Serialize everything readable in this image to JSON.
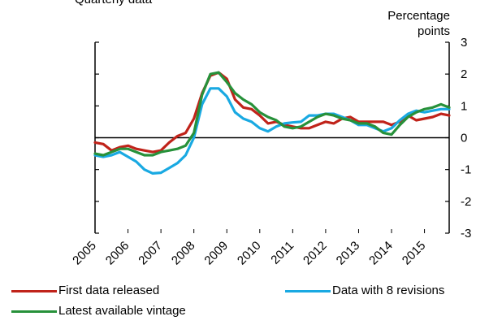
{
  "chart_data": {
    "type": "line",
    "subtitle": "Quarterly data",
    "ylabel": "Percentage points",
    "ylabel_lines": [
      "Percentage",
      "points"
    ],
    "ylim": [
      -3,
      3
    ],
    "yticks": [
      3,
      2,
      1,
      0,
      -1,
      -2,
      -3
    ],
    "xlim": [
      2005.0,
      2015.75
    ],
    "xticks": [
      "2005",
      "2006",
      "2007",
      "2008",
      "2009",
      "2010",
      "2011",
      "2012",
      "2013",
      "2014",
      "2015"
    ],
    "legend_position": "bottom",
    "grid": false,
    "series": [
      {
        "name": "First data released",
        "color": "#c0231a",
        "x": [
          2005.0,
          2005.25,
          2005.5,
          2005.75,
          2006.0,
          2006.25,
          2006.5,
          2006.75,
          2007.0,
          2007.25,
          2007.5,
          2007.75,
          2008.0,
          2008.25,
          2008.5,
          2008.75,
          2009.0,
          2009.25,
          2009.5,
          2009.75,
          2010.0,
          2010.25,
          2010.5,
          2010.75,
          2011.0,
          2011.25,
          2011.5,
          2011.75,
          2012.0,
          2012.25,
          2012.5,
          2012.75,
          2013.0,
          2013.25,
          2013.5,
          2013.75,
          2014.0,
          2014.25,
          2014.5,
          2014.75,
          2015.0,
          2015.25,
          2015.5,
          2015.75
        ],
        "y": [
          -0.15,
          -0.2,
          -0.4,
          -0.3,
          -0.25,
          -0.35,
          -0.4,
          -0.45,
          -0.4,
          -0.15,
          0.05,
          0.15,
          0.6,
          1.4,
          1.95,
          2.05,
          1.85,
          1.2,
          0.95,
          0.9,
          0.7,
          0.45,
          0.5,
          0.4,
          0.35,
          0.3,
          0.3,
          0.4,
          0.5,
          0.45,
          0.6,
          0.65,
          0.5,
          0.5,
          0.5,
          0.5,
          0.4,
          0.5,
          0.7,
          0.55,
          0.6,
          0.65,
          0.75,
          0.7
        ]
      },
      {
        "name": "Data with 8 revisions",
        "color": "#19a9e2",
        "x": [
          2005.0,
          2005.25,
          2005.5,
          2005.75,
          2006.0,
          2006.25,
          2006.5,
          2006.75,
          2007.0,
          2007.25,
          2007.5,
          2007.75,
          2008.0,
          2008.25,
          2008.5,
          2008.75,
          2009.0,
          2009.25,
          2009.5,
          2009.75,
          2010.0,
          2010.25,
          2010.5,
          2010.75,
          2011.0,
          2011.25,
          2011.5,
          2011.75,
          2012.0,
          2012.25,
          2012.5,
          2012.75,
          2013.0,
          2013.25,
          2013.5,
          2013.75,
          2014.0,
          2014.25,
          2014.5,
          2014.75,
          2015.0,
          2015.25,
          2015.5,
          2015.75
        ],
        "y": [
          -0.55,
          -0.6,
          -0.55,
          -0.45,
          -0.6,
          -0.75,
          -1.0,
          -1.12,
          -1.1,
          -0.95,
          -0.8,
          -0.55,
          0.0,
          1.05,
          1.55,
          1.55,
          1.3,
          0.8,
          0.6,
          0.5,
          0.3,
          0.2,
          0.35,
          0.45,
          0.48,
          0.5,
          0.7,
          0.7,
          0.75,
          0.75,
          0.65,
          0.55,
          0.4,
          0.4,
          0.3,
          0.2,
          0.3,
          0.55,
          0.75,
          0.85,
          0.8,
          0.85,
          0.9,
          0.9
        ]
      },
      {
        "name": "Latest available vintage",
        "color": "#27913a",
        "x": [
          2005.0,
          2005.25,
          2005.5,
          2005.75,
          2006.0,
          2006.25,
          2006.5,
          2006.75,
          2007.0,
          2007.25,
          2007.5,
          2007.75,
          2008.0,
          2008.25,
          2008.5,
          2008.75,
          2009.0,
          2009.25,
          2009.5,
          2009.75,
          2010.0,
          2010.25,
          2010.5,
          2010.75,
          2011.0,
          2011.25,
          2011.5,
          2011.75,
          2012.0,
          2012.25,
          2012.5,
          2012.75,
          2013.0,
          2013.25,
          2013.5,
          2013.75,
          2014.0,
          2014.25,
          2014.5,
          2014.75,
          2015.0,
          2015.25,
          2015.5,
          2015.75
        ],
        "y": [
          -0.5,
          -0.55,
          -0.45,
          -0.35,
          -0.35,
          -0.45,
          -0.55,
          -0.55,
          -0.45,
          -0.4,
          -0.35,
          -0.25,
          0.15,
          1.35,
          2.0,
          2.05,
          1.75,
          1.4,
          1.2,
          1.05,
          0.8,
          0.65,
          0.55,
          0.35,
          0.3,
          0.35,
          0.5,
          0.65,
          0.75,
          0.7,
          0.6,
          0.55,
          0.45,
          0.45,
          0.35,
          0.15,
          0.1,
          0.4,
          0.65,
          0.8,
          0.9,
          0.95,
          1.05,
          0.95
        ]
      }
    ]
  }
}
